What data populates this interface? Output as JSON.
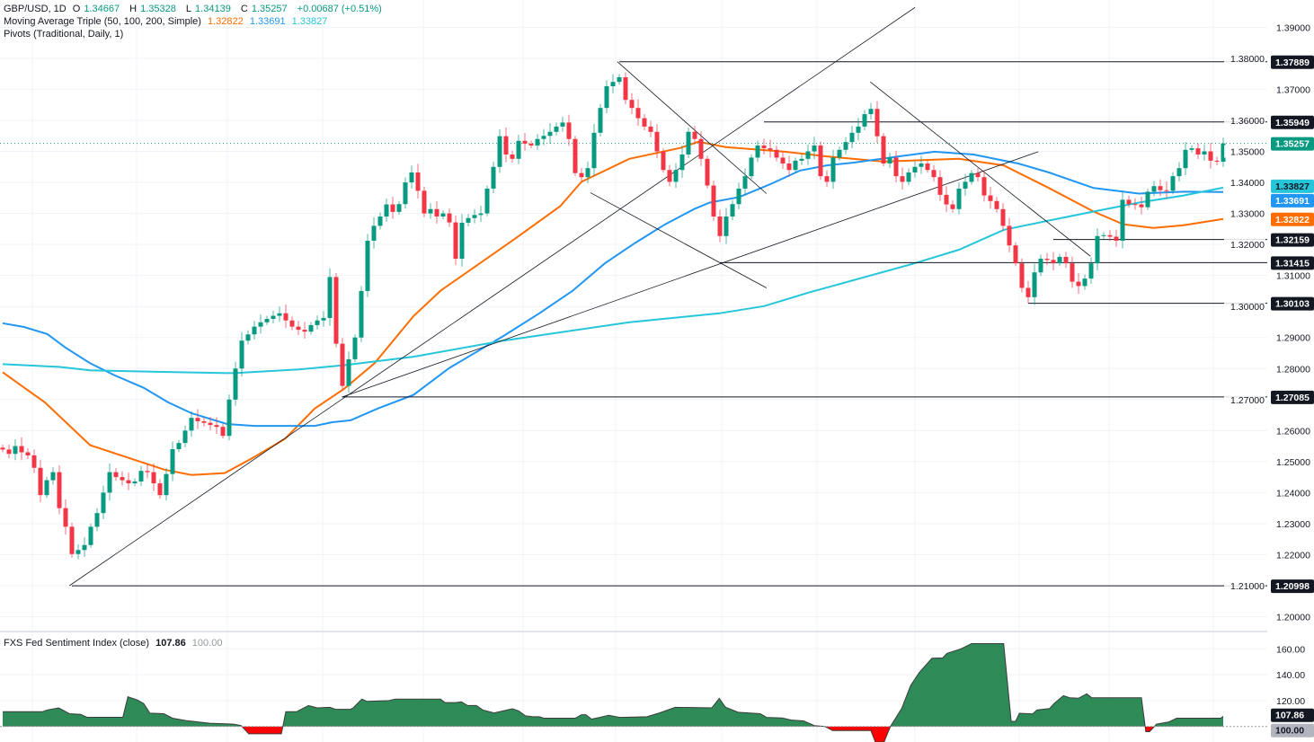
{
  "header": {
    "symbol": "GBP/USD, 1D",
    "open_label": "O",
    "open": "1.34667",
    "high_label": "H",
    "high": "1.35328",
    "low_label": "L",
    "low": "1.34139",
    "close_label": "C",
    "close": "1.35257",
    "change": "+0.00687 (+0.51%)",
    "ma_title": "Moving Average Triple (50, 100, 200, Simple)",
    "ma50": "1.32822",
    "ma100": "1.33691",
    "ma200": "1.33827",
    "pivots_title": "Pivots (Traditional, Daily, 1)"
  },
  "sentiment_header": {
    "title": "FXS Fed Sentiment Index (close)",
    "value": "107.86",
    "baseline": "100.00"
  },
  "colors": {
    "up": "#089981",
    "down": "#f23645",
    "ma50": "#ff6d00",
    "ma100": "#2196f3",
    "ma200": "#26c6da",
    "sentiment_pos": "#2e8b57",
    "sentiment_neg": "#ff0000"
  },
  "chart_data": [
    {
      "type": "candlestick",
      "title": "GBP/USD, 1D",
      "ylim": [
        1.1961,
        1.3988
      ],
      "y_ticks": [
        "1.39000",
        "1.38000",
        "1.37000",
        "1.36000",
        "1.35000",
        "1.34000",
        "1.33000",
        "1.32000",
        "1.31000",
        "1.30000",
        "1.29000",
        "1.28000",
        "1.27000",
        "1.26000",
        "1.25000",
        "1.24000",
        "1.23000",
        "1.22000",
        "1.21000",
        "1.20000"
      ],
      "grid": true,
      "first_open": 1.2545,
      "closes": [
        1.2539,
        1.2525,
        1.255,
        1.253,
        1.252,
        1.248,
        1.2392,
        1.244,
        1.2466,
        1.235,
        1.229,
        1.2202,
        1.2215,
        1.2231,
        1.229,
        1.2334,
        1.24,
        1.2466,
        1.245,
        1.244,
        1.243,
        1.2436,
        1.247,
        1.2466,
        1.243,
        1.2392,
        1.246,
        1.254,
        1.256,
        1.26,
        1.2641,
        1.263,
        1.2625,
        1.2618,
        1.2612,
        1.2583,
        1.27,
        1.28,
        1.289,
        1.291,
        1.2935,
        1.2949,
        1.296,
        1.297,
        1.2978,
        1.2955,
        1.2935,
        1.2925,
        1.2919,
        1.294,
        1.2955,
        1.2963,
        1.3095,
        1.288,
        1.2744,
        1.283,
        1.29,
        1.305,
        1.3212,
        1.326,
        1.329,
        1.3329,
        1.3305,
        1.333,
        1.34,
        1.3432,
        1.3373,
        1.33,
        1.3314,
        1.329,
        1.33,
        1.3271,
        1.3154,
        1.327,
        1.3285,
        1.3295,
        1.33,
        1.338,
        1.345,
        1.3549,
        1.349,
        1.3476,
        1.3534,
        1.3525,
        1.3519,
        1.354,
        1.355,
        1.3563,
        1.358,
        1.3593,
        1.354,
        1.343,
        1.3417,
        1.3446,
        1.356,
        1.364,
        1.371,
        1.3724,
        1.3739,
        1.3666,
        1.364,
        1.3607,
        1.358,
        1.3563,
        1.35,
        1.344,
        1.3402,
        1.344,
        1.349,
        1.3563,
        1.354,
        1.3476,
        1.339,
        1.329,
        1.3227,
        1.329,
        1.333,
        1.338,
        1.342,
        1.348,
        1.3519,
        1.351,
        1.3505,
        1.348,
        1.3461,
        1.344,
        1.347,
        1.3476,
        1.35,
        1.3519,
        1.342,
        1.3402,
        1.348,
        1.3505,
        1.353,
        1.356,
        1.358,
        1.362,
        1.3637,
        1.3549,
        1.3461,
        1.348,
        1.342,
        1.3402,
        1.3432,
        1.345,
        1.3461,
        1.344,
        1.3417,
        1.336,
        1.3329,
        1.3314,
        1.338,
        1.3402,
        1.343,
        1.3417,
        1.3358,
        1.334,
        1.3314,
        1.326,
        1.3197,
        1.3139,
        1.306,
        1.303,
        1.311,
        1.3154,
        1.315,
        1.3139,
        1.316,
        1.3139,
        1.308,
        1.3066,
        1.309,
        1.3139,
        1.3227,
        1.323,
        1.3225,
        1.3212,
        1.3344,
        1.333,
        1.3329,
        1.332,
        1.337,
        1.3388,
        1.3375,
        1.3373,
        1.342,
        1.3446,
        1.3505,
        1.351,
        1.349,
        1.35,
        1.347,
        1.3467,
        1.35257
      ],
      "moving_averages": [
        {
          "name": "MA50",
          "value": "1.32822",
          "points": [
            [
              0,
              1.2788
            ],
            [
              6.7,
              1.2691
            ],
            [
              13.9,
              1.2553
            ],
            [
              25.7,
              1.2474
            ],
            [
              30,
              1.2457
            ],
            [
              35.3,
              1.2463
            ],
            [
              40,
              1.2515
            ],
            [
              44.9,
              1.2574
            ],
            [
              49.6,
              1.2671
            ],
            [
              54.3,
              1.2735
            ],
            [
              59.1,
              1.2817
            ],
            [
              65.3,
              1.2969
            ],
            [
              69.6,
              1.3051
            ],
            [
              81.4,
              1.3218
            ],
            [
              88.6,
              1.3323
            ],
            [
              92,
              1.3402
            ],
            [
              99.6,
              1.3476
            ],
            [
              107.7,
              1.3511
            ],
            [
              110.6,
              1.3531
            ],
            [
              114.9,
              1.3514
            ],
            [
              124.3,
              1.3499
            ],
            [
              131,
              1.3484
            ],
            [
              140,
              1.3467
            ],
            [
              152,
              1.3476
            ],
            [
              159.1,
              1.3455
            ],
            [
              166.3,
              1.3382
            ],
            [
              173.4,
              1.3306
            ],
            [
              178.1,
              1.3265
            ],
            [
              182.9,
              1.3253
            ],
            [
              187.7,
              1.3262
            ],
            [
              194,
              1.3282
            ]
          ]
        },
        {
          "name": "MA100",
          "value": "1.33691",
          "points": [
            [
              0,
              1.2946
            ],
            [
              3.4,
              1.2934
            ],
            [
              7.1,
              1.2911
            ],
            [
              10,
              1.2867
            ],
            [
              13.9,
              1.2817
            ],
            [
              17.7,
              1.2779
            ],
            [
              22.4,
              1.2738
            ],
            [
              26.3,
              1.2691
            ],
            [
              30,
              1.2656
            ],
            [
              35.7,
              1.2621
            ],
            [
              40,
              1.2615
            ],
            [
              49.6,
              1.2615
            ],
            [
              52.4,
              1.2627
            ],
            [
              55.3,
              1.2633
            ],
            [
              59.6,
              1.2671
            ],
            [
              65.3,
              1.2715
            ],
            [
              71,
              1.2802
            ],
            [
              79.6,
              1.2905
            ],
            [
              85.3,
              1.2978
            ],
            [
              90.6,
              1.3051
            ],
            [
              95.7,
              1.3139
            ],
            [
              100.6,
              1.3206
            ],
            [
              105.3,
              1.3265
            ],
            [
              110,
              1.3315
            ],
            [
              112.4,
              1.3335
            ],
            [
              117.1,
              1.3353
            ],
            [
              122,
              1.3394
            ],
            [
              126.7,
              1.3438
            ],
            [
              131,
              1.3455
            ],
            [
              135.3,
              1.3464
            ],
            [
              142.4,
              1.3484
            ],
            [
              148.1,
              1.3499
            ],
            [
              154.3,
              1.349
            ],
            [
              161.4,
              1.3461
            ],
            [
              166.3,
              1.3432
            ],
            [
              173.4,
              1.3382
            ],
            [
              180.6,
              1.3364
            ],
            [
              187.7,
              1.337
            ],
            [
              194,
              1.3369
            ]
          ]
        },
        {
          "name": "MA200",
          "value": "1.33827",
          "points": [
            [
              0,
              1.2814
            ],
            [
              9.1,
              1.2805
            ],
            [
              13.9,
              1.2794
            ],
            [
              28.1,
              1.2788
            ],
            [
              36.7,
              1.2785
            ],
            [
              47.1,
              1.2797
            ],
            [
              54.3,
              1.2811
            ],
            [
              65.3,
              1.2838
            ],
            [
              79.6,
              1.289
            ],
            [
              99.6,
              1.2949
            ],
            [
              113.9,
              1.2978
            ],
            [
              121,
              1.3001
            ],
            [
              128.1,
              1.3045
            ],
            [
              144.9,
              1.3139
            ],
            [
              152,
              1.3183
            ],
            [
              159.1,
              1.3247
            ],
            [
              166.3,
              1.3277
            ],
            [
              173.4,
              1.3306
            ],
            [
              180.6,
              1.3335
            ],
            [
              187.7,
              1.3358
            ],
            [
              194,
              1.3383
            ]
          ]
        }
      ],
      "pivots": [
        {
          "label": "1.37889",
          "price": 1.37889,
          "from_bar": 98
        },
        {
          "label": "1.35949",
          "price": 1.35949,
          "from_bar": 121
        },
        {
          "label": "1.32159",
          "price": 1.32159,
          "from_bar": 167
        },
        {
          "label": "1.31415",
          "price": 1.31415,
          "from_bar": 114
        },
        {
          "label": "1.30103",
          "price": 1.30103,
          "from_bar": 163
        },
        {
          "label": "1.27085",
          "price": 1.27085,
          "from_bar": 54
        },
        {
          "label": "1.20998",
          "price": 1.20998,
          "from_bar": 11
        }
      ],
      "trendlines": [
        [
          [
            10.6,
            1.21
          ],
          [
            145,
            1.3964
          ]
        ],
        [
          [
            53.9,
            1.2708
          ],
          [
            164.6,
            1.3499
          ]
        ],
        [
          [
            97.7,
            1.3789
          ],
          [
            121.4,
            1.3364
          ]
        ],
        [
          [
            93.4,
            1.3367
          ],
          [
            121.4,
            1.306
          ]
        ],
        [
          [
            137.9,
            1.3724
          ],
          [
            172.9,
            1.3162
          ]
        ]
      ],
      "last_price": "1.35257"
    },
    {
      "type": "area",
      "title": "FXS Fed Sentiment Index (close)",
      "baseline": 100,
      "ylim": [
        88,
        172
      ],
      "y_ticks": [
        "160.00",
        "140.00",
        "120.00"
      ],
      "points": [
        [
          0,
          111.4
        ],
        [
          6.3,
          111.4
        ],
        [
          7.1,
          112.8
        ],
        [
          8.9,
          114.4
        ],
        [
          10.6,
          109.9
        ],
        [
          12.4,
          109.4
        ],
        [
          13.4,
          107.1
        ],
        [
          19.1,
          107.1
        ],
        [
          19.9,
          123
        ],
        [
          21.4,
          120.5
        ],
        [
          22.4,
          117.8
        ],
        [
          23.4,
          110.3
        ],
        [
          25.6,
          109.9
        ],
        [
          27,
          106.4
        ],
        [
          29.1,
          104.6
        ],
        [
          32.9,
          102.5
        ],
        [
          36.7,
          101.8
        ],
        [
          37.9,
          100.7
        ],
        [
          39.1,
          94.3
        ],
        [
          44.3,
          94.3
        ],
        [
          45,
          111.4
        ],
        [
          46.7,
          111.4
        ],
        [
          48.6,
          116.2
        ],
        [
          50,
          114.4
        ],
        [
          52,
          114.8
        ],
        [
          52.9,
          113.3
        ],
        [
          55.3,
          113.3
        ],
        [
          55.7,
          114.4
        ],
        [
          57.1,
          121.2
        ],
        [
          57.9,
          119.4
        ],
        [
          61.4,
          120
        ],
        [
          62.4,
          121.2
        ],
        [
          69.6,
          121.2
        ],
        [
          70.3,
          118.5
        ],
        [
          72,
          118.5
        ],
        [
          72.9,
          119
        ],
        [
          73.9,
          116.2
        ],
        [
          75.3,
          116.2
        ],
        [
          76.3,
          112.8
        ],
        [
          78.1,
          110.5
        ],
        [
          79.6,
          112.1
        ],
        [
          81,
          113.7
        ],
        [
          82,
          112.1
        ],
        [
          83.1,
          108.2
        ],
        [
          84.3,
          107.5
        ],
        [
          85.3,
          107.5
        ],
        [
          86,
          106.4
        ],
        [
          91,
          106.4
        ],
        [
          92,
          109.1
        ],
        [
          92.7,
          109.1
        ],
        [
          93.6,
          105.7
        ],
        [
          94.9,
          107
        ],
        [
          96.3,
          108.7
        ],
        [
          98.1,
          107
        ],
        [
          102.4,
          107.5
        ],
        [
          104.4,
          110.5
        ],
        [
          106.9,
          114.8
        ],
        [
          112.7,
          114.4
        ],
        [
          113.9,
          121.7
        ],
        [
          114.9,
          114.8
        ],
        [
          116.9,
          111
        ],
        [
          120.4,
          109.9
        ],
        [
          121.4,
          107
        ],
        [
          123.9,
          106.6
        ],
        [
          125.3,
          105
        ],
        [
          127.3,
          104.3
        ],
        [
          129,
          100.7
        ],
        [
          130.7,
          100
        ],
        [
          131.9,
          96.8
        ],
        [
          138,
          96.8
        ],
        [
          138.7,
          88
        ],
        [
          140.1,
          88
        ],
        [
          141.1,
          100
        ],
        [
          142.9,
          114
        ],
        [
          144.3,
          131.5
        ],
        [
          145.7,
          141.8
        ],
        [
          147.7,
          152.7
        ],
        [
          149.4,
          153
        ],
        [
          150.1,
          156.5
        ],
        [
          152.3,
          160
        ],
        [
          154,
          164
        ],
        [
          159.1,
          164
        ],
        [
          160.3,
          104
        ],
        [
          161,
          104
        ],
        [
          161.6,
          110.2
        ],
        [
          163.7,
          109.7
        ],
        [
          164.4,
          112.7
        ],
        [
          166.4,
          113.8
        ],
        [
          167.1,
          117.7
        ],
        [
          168.6,
          123.8
        ],
        [
          169.6,
          122.2
        ],
        [
          171,
          121.8
        ],
        [
          172.3,
          125.2
        ],
        [
          173.1,
          122.2
        ],
        [
          181,
          122.2
        ],
        [
          181.7,
          96
        ],
        [
          182.3,
          96
        ],
        [
          183.4,
          101.8
        ],
        [
          185.3,
          103.4
        ],
        [
          186.6,
          106.4
        ],
        [
          193.6,
          106.4
        ],
        [
          194,
          107.86
        ]
      ],
      "last_value": "107.86",
      "baseline_label": "100.00"
    }
  ]
}
